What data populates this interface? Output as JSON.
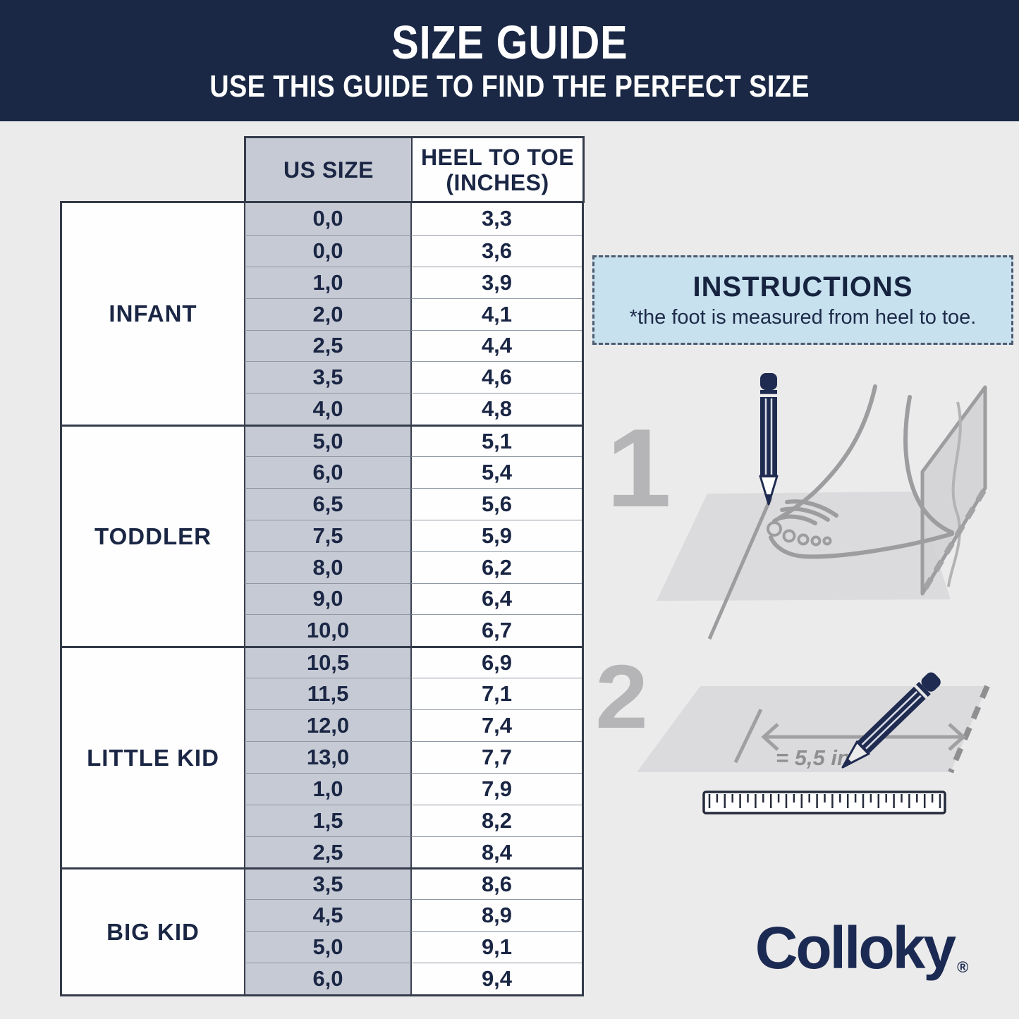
{
  "header": {
    "title": "SIZE GUIDE",
    "subtitle": "USE THIS GUIDE TO FIND THE PERFECT SIZE"
  },
  "table": {
    "header": {
      "us_size": "US SIZE",
      "heel_line1": "HEEL TO TOE",
      "heel_line2": "(INCHES)"
    },
    "sections": [
      {
        "category": "INFANT",
        "rows": [
          [
            "0,0",
            "3,3"
          ],
          [
            "0,0",
            "3,6"
          ],
          [
            "1,0",
            "3,9"
          ],
          [
            "2,0",
            "4,1"
          ],
          [
            "2,5",
            "4,4"
          ],
          [
            "3,5",
            "4,6"
          ],
          [
            "4,0",
            "4,8"
          ]
        ]
      },
      {
        "category": "TODDLER",
        "rows": [
          [
            "5,0",
            "5,1"
          ],
          [
            "6,0",
            "5,4"
          ],
          [
            "6,5",
            "5,6"
          ],
          [
            "7,5",
            "5,9"
          ],
          [
            "8,0",
            "6,2"
          ],
          [
            "9,0",
            "6,4"
          ],
          [
            "10,0",
            "6,7"
          ]
        ]
      },
      {
        "category": "LITTLE KID",
        "rows": [
          [
            "10,5",
            "6,9"
          ],
          [
            "11,5",
            "7,1"
          ],
          [
            "12,0",
            "7,4"
          ],
          [
            "13,0",
            "7,7"
          ],
          [
            "1,0",
            "7,9"
          ],
          [
            "1,5",
            "8,2"
          ],
          [
            "2,5",
            "8,4"
          ]
        ]
      },
      {
        "category": "BIG KID",
        "rows": [
          [
            "3,5",
            "8,6"
          ],
          [
            "4,5",
            "8,9"
          ],
          [
            "5,0",
            "9,1"
          ],
          [
            "6,0",
            "9,4"
          ]
        ]
      }
    ]
  },
  "instructions": {
    "title": "INSTRUCTIONS",
    "note": "*the foot is measured from heel to toe."
  },
  "steps": [
    {
      "number": "1"
    },
    {
      "number": "2",
      "measurement": "= 5,5 in"
    }
  ],
  "brand": {
    "name": "Colloky",
    "registered": "®"
  },
  "colors": {
    "navy_band": "#1a2845",
    "text_navy": "#1a2644",
    "table_gray": "#c6cad4",
    "border_dark": "#343b4a",
    "instructions_blue": "#c8e1ef",
    "page_bg": "#ecebeb",
    "illustration_gray": "#9d9da0",
    "pencil_navy": "#1f2b50",
    "brand_navy": "#1b2a52"
  }
}
